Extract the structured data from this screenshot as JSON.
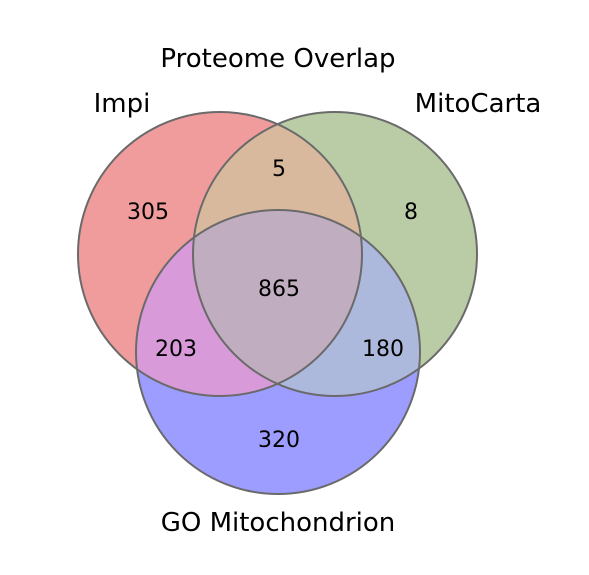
{
  "chart_data": {
    "type": "venn",
    "title": "Proteome Overlap",
    "sets": [
      {
        "name": "Impi",
        "color": "#e8464a"
      },
      {
        "name": "MitoCarta",
        "color": "#6e9d45"
      },
      {
        "name": "GO Mitochondrion",
        "color": "#3a3aff"
      }
    ],
    "regions": [
      {
        "sets": [
          "Impi"
        ],
        "value": "305"
      },
      {
        "sets": [
          "MitoCarta"
        ],
        "value": "8"
      },
      {
        "sets": [
          "GO Mitochondrion"
        ],
        "value": "320"
      },
      {
        "sets": [
          "Impi",
          "MitoCarta"
        ],
        "value": "5"
      },
      {
        "sets": [
          "Impi",
          "GO Mitochondrion"
        ],
        "value": "203"
      },
      {
        "sets": [
          "MitoCarta",
          "GO Mitochondrion"
        ],
        "value": "180"
      },
      {
        "sets": [
          "Impi",
          "MitoCarta",
          "GO Mitochondrion"
        ],
        "value": "865"
      }
    ]
  }
}
